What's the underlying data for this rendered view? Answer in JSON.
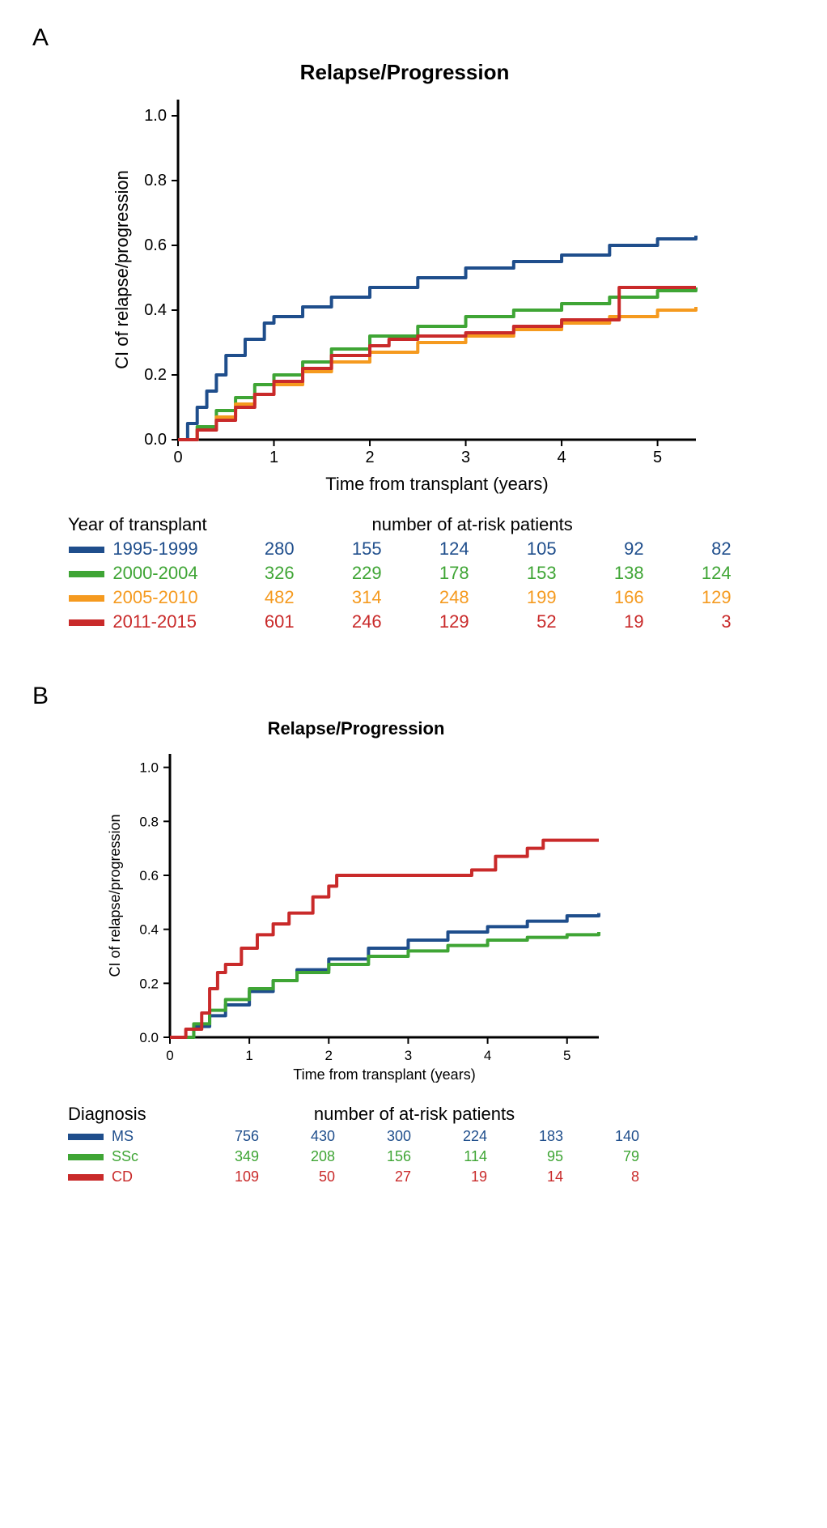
{
  "panelA": {
    "label": "A",
    "chart": {
      "type": "line",
      "title": "Relapse/Progression",
      "xlabel": "Time from transplant (years)",
      "ylabel": "CI of relapse/progression",
      "xlim": [
        0,
        5.4
      ],
      "ylim": [
        0,
        1.05
      ],
      "xticks": [
        0,
        1,
        2,
        3,
        4,
        5
      ],
      "yticks": [
        0.0,
        0.2,
        0.4,
        0.6,
        0.8,
        1.0
      ],
      "axis_color": "#000000",
      "background_color": "#ffffff",
      "line_width": 4,
      "title_fontsize": 26,
      "label_fontsize": 22,
      "tick_fontsize": 20,
      "series": [
        {
          "name": "1995-1999",
          "color": "#1f4e8c",
          "points": [
            [
              0,
              0
            ],
            [
              0.1,
              0.05
            ],
            [
              0.2,
              0.1
            ],
            [
              0.3,
              0.15
            ],
            [
              0.4,
              0.2
            ],
            [
              0.5,
              0.26
            ],
            [
              0.7,
              0.31
            ],
            [
              0.9,
              0.36
            ],
            [
              1.0,
              0.38
            ],
            [
              1.3,
              0.41
            ],
            [
              1.6,
              0.44
            ],
            [
              2.0,
              0.47
            ],
            [
              2.5,
              0.5
            ],
            [
              3.0,
              0.53
            ],
            [
              3.5,
              0.55
            ],
            [
              4.0,
              0.57
            ],
            [
              4.5,
              0.6
            ],
            [
              5.0,
              0.62
            ],
            [
              5.4,
              0.63
            ]
          ]
        },
        {
          "name": "2000-2004",
          "color": "#3fa535",
          "points": [
            [
              0,
              0
            ],
            [
              0.2,
              0.04
            ],
            [
              0.4,
              0.09
            ],
            [
              0.6,
              0.13
            ],
            [
              0.8,
              0.17
            ],
            [
              1.0,
              0.2
            ],
            [
              1.3,
              0.24
            ],
            [
              1.6,
              0.28
            ],
            [
              2.0,
              0.32
            ],
            [
              2.5,
              0.35
            ],
            [
              3.0,
              0.38
            ],
            [
              3.5,
              0.4
            ],
            [
              4.0,
              0.42
            ],
            [
              4.5,
              0.44
            ],
            [
              5.0,
              0.46
            ],
            [
              5.4,
              0.47
            ]
          ]
        },
        {
          "name": "2005-2010",
          "color": "#f59a1f",
          "points": [
            [
              0,
              0
            ],
            [
              0.2,
              0.03
            ],
            [
              0.4,
              0.07
            ],
            [
              0.6,
              0.11
            ],
            [
              0.8,
              0.14
            ],
            [
              1.0,
              0.17
            ],
            [
              1.3,
              0.21
            ],
            [
              1.6,
              0.24
            ],
            [
              2.0,
              0.27
            ],
            [
              2.5,
              0.3
            ],
            [
              3.0,
              0.32
            ],
            [
              3.5,
              0.34
            ],
            [
              4.0,
              0.36
            ],
            [
              4.5,
              0.38
            ],
            [
              5.0,
              0.4
            ],
            [
              5.4,
              0.41
            ]
          ]
        },
        {
          "name": "2011-2015",
          "color": "#c92a2a",
          "points": [
            [
              0,
              0
            ],
            [
              0.2,
              0.03
            ],
            [
              0.4,
              0.06
            ],
            [
              0.6,
              0.1
            ],
            [
              0.8,
              0.14
            ],
            [
              1.0,
              0.18
            ],
            [
              1.3,
              0.22
            ],
            [
              1.6,
              0.26
            ],
            [
              2.0,
              0.29
            ],
            [
              2.2,
              0.31
            ],
            [
              2.5,
              0.32
            ],
            [
              3.0,
              0.33
            ],
            [
              3.5,
              0.35
            ],
            [
              4.0,
              0.37
            ],
            [
              4.6,
              0.37
            ],
            [
              4.6,
              0.47
            ],
            [
              5.0,
              0.47
            ],
            [
              5.4,
              0.47
            ]
          ]
        }
      ]
    },
    "risk_table": {
      "group_header": "Year of transplant",
      "count_header": "number of at-risk patients",
      "time_points": [
        0,
        1,
        2,
        3,
        4,
        5
      ],
      "rows": [
        {
          "label": "1995-1999",
          "color": "#1f4e8c",
          "counts": [
            280,
            155,
            124,
            105,
            92,
            82
          ]
        },
        {
          "label": "2000-2004",
          "color": "#3fa535",
          "counts": [
            326,
            229,
            178,
            153,
            138,
            124
          ]
        },
        {
          "label": "2005-2010",
          "color": "#f59a1f",
          "counts": [
            482,
            314,
            248,
            199,
            166,
            129
          ]
        },
        {
          "label": "2011-2015",
          "color": "#c92a2a",
          "counts": [
            601,
            246,
            129,
            52,
            19,
            3
          ]
        }
      ]
    }
  },
  "panelB": {
    "label": "B",
    "chart": {
      "type": "line",
      "title": "Relapse/Progression",
      "xlabel": "Time from transplant (years)",
      "ylabel": "CI of relapse/progression",
      "xlim": [
        0,
        5.4
      ],
      "ylim": [
        0,
        1.05
      ],
      "xticks": [
        0,
        1,
        2,
        3,
        4,
        5
      ],
      "yticks": [
        0.0,
        0.2,
        0.4,
        0.6,
        0.8,
        1.0
      ],
      "axis_color": "#000000",
      "background_color": "#ffffff",
      "line_width": 4,
      "title_fontsize": 22,
      "label_fontsize": 18,
      "tick_fontsize": 17,
      "series": [
        {
          "name": "MS",
          "color": "#1f4e8c",
          "points": [
            [
              0,
              0
            ],
            [
              0.3,
              0.04
            ],
            [
              0.5,
              0.08
            ],
            [
              0.7,
              0.12
            ],
            [
              1.0,
              0.17
            ],
            [
              1.3,
              0.21
            ],
            [
              1.6,
              0.25
            ],
            [
              2.0,
              0.29
            ],
            [
              2.5,
              0.33
            ],
            [
              3.0,
              0.36
            ],
            [
              3.5,
              0.39
            ],
            [
              4.0,
              0.41
            ],
            [
              4.5,
              0.43
            ],
            [
              5.0,
              0.45
            ],
            [
              5.4,
              0.46
            ]
          ]
        },
        {
          "name": "SSc",
          "color": "#3fa535",
          "points": [
            [
              0,
              0
            ],
            [
              0.3,
              0.05
            ],
            [
              0.5,
              0.1
            ],
            [
              0.7,
              0.14
            ],
            [
              1.0,
              0.18
            ],
            [
              1.3,
              0.21
            ],
            [
              1.6,
              0.24
            ],
            [
              2.0,
              0.27
            ],
            [
              2.5,
              0.3
            ],
            [
              3.0,
              0.32
            ],
            [
              3.5,
              0.34
            ],
            [
              4.0,
              0.36
            ],
            [
              4.5,
              0.37
            ],
            [
              5.0,
              0.38
            ],
            [
              5.4,
              0.39
            ]
          ]
        },
        {
          "name": "CD",
          "color": "#c92a2a",
          "points": [
            [
              0,
              0
            ],
            [
              0.2,
              0.03
            ],
            [
              0.4,
              0.09
            ],
            [
              0.5,
              0.18
            ],
            [
              0.6,
              0.24
            ],
            [
              0.7,
              0.27
            ],
            [
              0.9,
              0.33
            ],
            [
              1.1,
              0.38
            ],
            [
              1.3,
              0.42
            ],
            [
              1.5,
              0.46
            ],
            [
              1.8,
              0.52
            ],
            [
              2.0,
              0.56
            ],
            [
              2.1,
              0.6
            ],
            [
              3.0,
              0.6
            ],
            [
              3.8,
              0.62
            ],
            [
              4.1,
              0.67
            ],
            [
              4.5,
              0.7
            ],
            [
              4.7,
              0.73
            ],
            [
              5.4,
              0.73
            ]
          ]
        }
      ]
    },
    "risk_table": {
      "group_header": "Diagnosis",
      "count_header": "number of at-risk patients",
      "time_points": [
        0,
        1,
        2,
        3,
        4,
        5
      ],
      "rows": [
        {
          "label": "MS",
          "color": "#1f4e8c",
          "counts": [
            756,
            430,
            300,
            224,
            183,
            140
          ]
        },
        {
          "label": "SSc",
          "color": "#3fa535",
          "counts": [
            349,
            208,
            156,
            114,
            95,
            79
          ]
        },
        {
          "label": "CD",
          "color": "#c92a2a",
          "counts": [
            109,
            50,
            27,
            19,
            14,
            8
          ]
        }
      ]
    }
  }
}
